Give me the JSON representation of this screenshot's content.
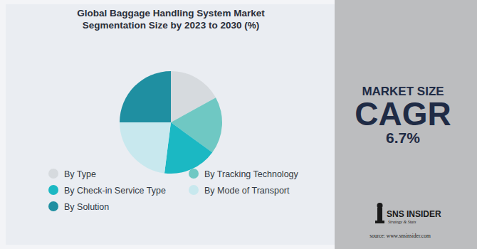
{
  "chart_data": {
    "type": "pie",
    "title": "Global Baggage Handling System Market Segmentation Size by 2023 to 2030 (%)",
    "categories": [
      "By Type",
      "By Tracking Technology",
      "By Check-in Service Type",
      "By Mode of Transport",
      "By Solution"
    ],
    "values": [
      17,
      18,
      17,
      23,
      25
    ],
    "colors": [
      "#d6dade",
      "#6fc8c3",
      "#1bb8c3",
      "#c8e8ee",
      "#1f8fa1"
    ],
    "data_labels": false,
    "legend": "bottom",
    "annotations": [
      "MARKET SIZE",
      "CAGR",
      "6.7%",
      "SNS INSIDER",
      "Strategy & Stats",
      "source: www.snsinsider.com"
    ]
  }
}
